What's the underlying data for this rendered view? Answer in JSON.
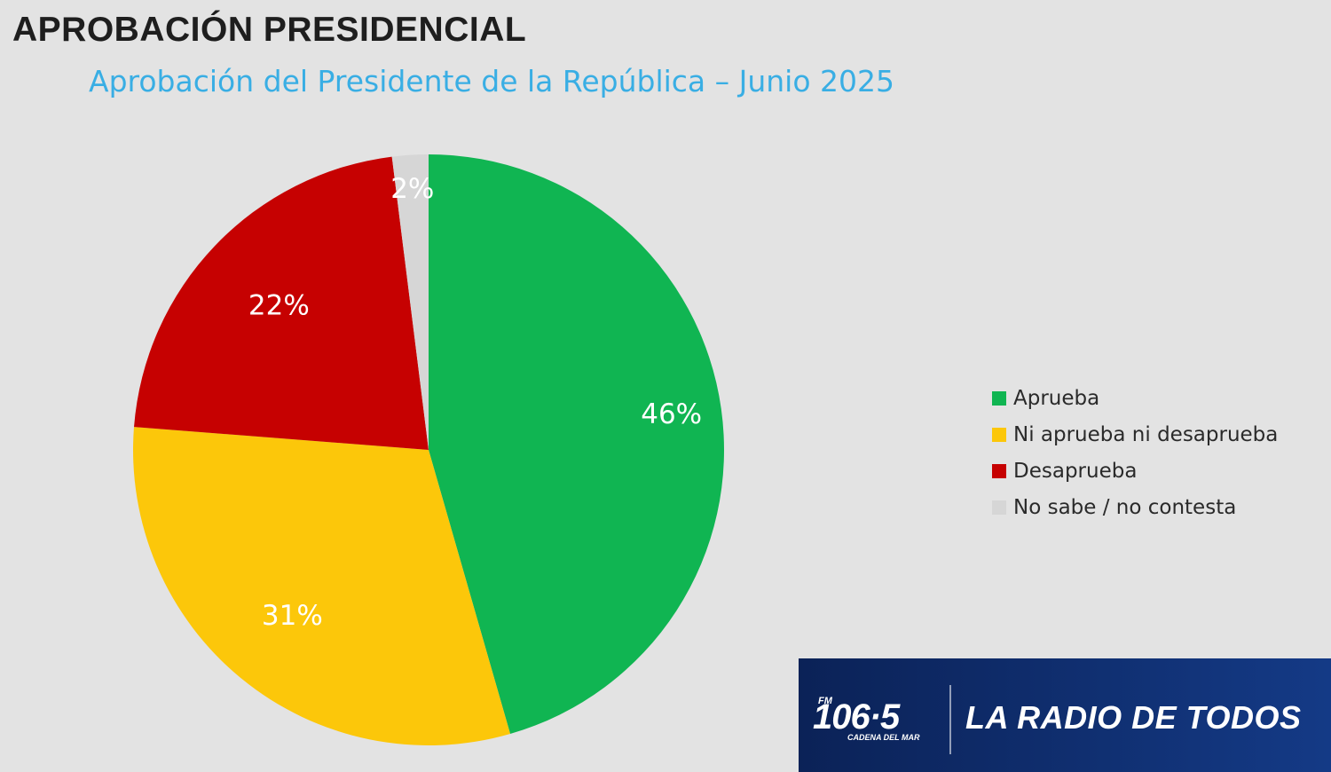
{
  "header": {
    "title": "APROBACIÓN PRESIDENCIAL"
  },
  "chart_data": {
    "type": "pie",
    "title": "Aprobación del Presidente de la República – Junio 2025",
    "slices": [
      {
        "label": "Aprueba",
        "value": 46,
        "value_label": "46%",
        "color": "#10b552"
      },
      {
        "label": "Ni aprueba ni desaprueba",
        "value": 31,
        "value_label": "31%",
        "color": "#fcc70a"
      },
      {
        "label": "Desaprueba",
        "value": 22,
        "value_label": "22%",
        "color": "#c60101"
      },
      {
        "label": "No sabe / no contesta",
        "value": 2,
        "value_label": "2%",
        "color": "#d6d6d6"
      }
    ],
    "start": "12 o'clock",
    "direction": "clockwise",
    "legend_position": "right"
  },
  "banner": {
    "band": "FM",
    "frequency": "106·5",
    "station": "CADENA DEL MAR",
    "slogan": "LA RADIO DE TODOS",
    "bg_color": "#0b2257"
  }
}
